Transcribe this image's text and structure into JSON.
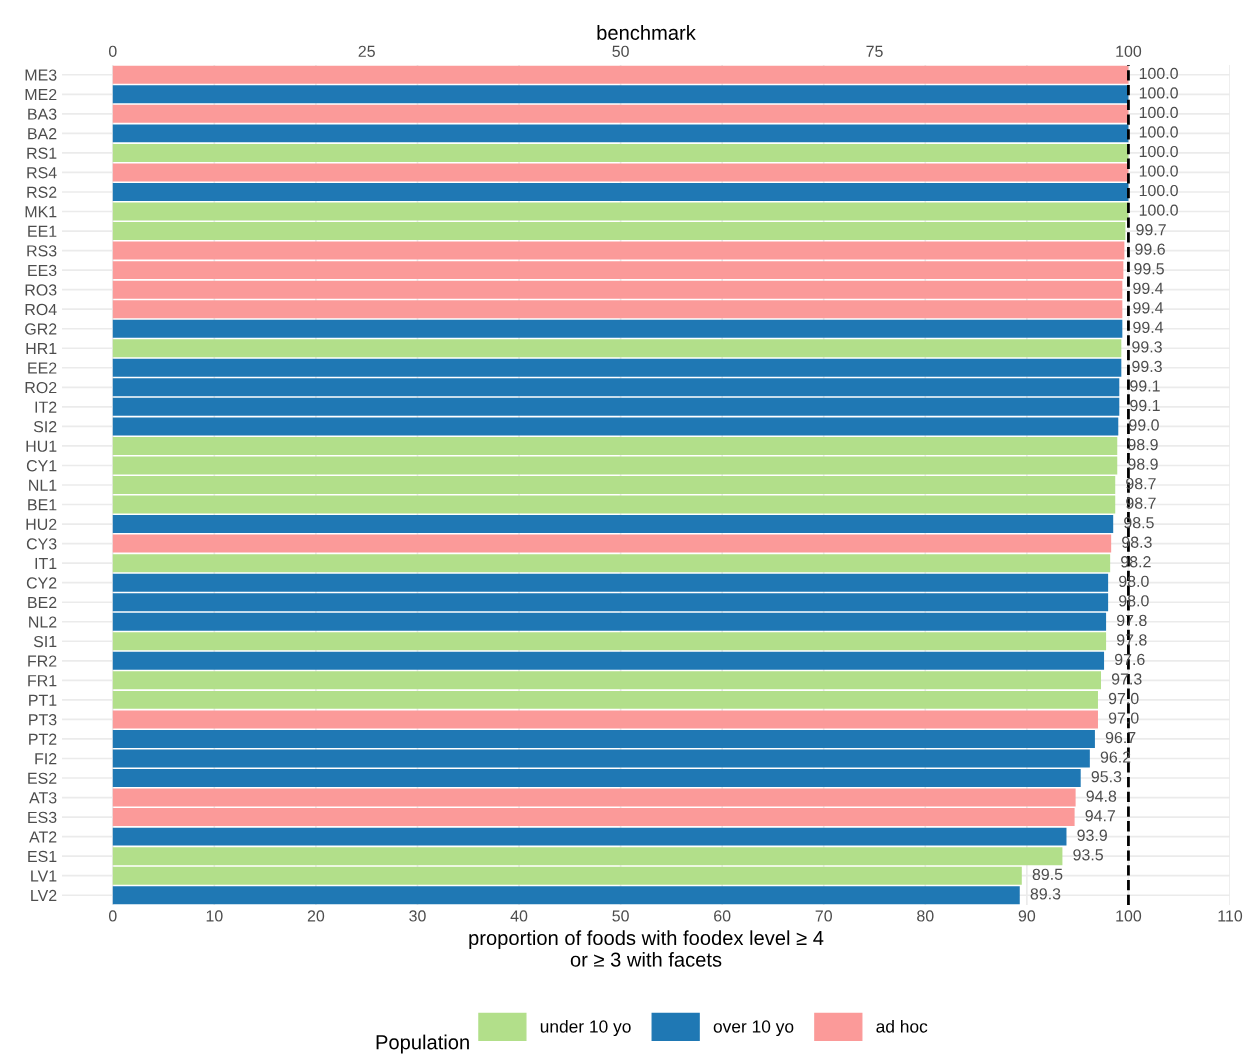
{
  "chart_data": {
    "type": "bar",
    "orientation": "horizontal",
    "x2label": "benchmark",
    "xlabel": "proportion of foods with foodex level ≥ 4\nor ≥ 3 with facets",
    "legend_title": "Population",
    "categories": [
      "ME3",
      "ME2",
      "BA3",
      "BA2",
      "RS1",
      "RS4",
      "RS2",
      "MK1",
      "EE1",
      "RS3",
      "EE3",
      "RO3",
      "RO4",
      "GR2",
      "HR1",
      "EE2",
      "RO2",
      "IT2",
      "SI2",
      "HU1",
      "CY1",
      "NL1",
      "BE1",
      "HU2",
      "CY3",
      "IT1",
      "CY2",
      "BE2",
      "NL2",
      "SI1",
      "FR2",
      "FR1",
      "PT1",
      "PT3",
      "PT2",
      "FI2",
      "ES2",
      "AT3",
      "ES3",
      "AT2",
      "ES1",
      "LV1",
      "LV2"
    ],
    "series": [
      {
        "name": "under 10 yo",
        "color": "#b2df8a",
        "values": [
          null,
          null,
          null,
          null,
          100.0,
          null,
          null,
          100.0,
          99.7,
          null,
          null,
          null,
          null,
          null,
          99.3,
          null,
          null,
          null,
          null,
          98.9,
          98.9,
          98.7,
          98.7,
          null,
          null,
          98.2,
          null,
          null,
          null,
          97.8,
          null,
          97.3,
          97.0,
          null,
          null,
          null,
          null,
          null,
          null,
          null,
          93.5,
          89.5,
          null
        ],
        "value_labels": [
          null,
          null,
          null,
          null,
          "100.0",
          null,
          null,
          "100.0",
          "99.7",
          null,
          null,
          null,
          null,
          null,
          "99.3",
          null,
          null,
          null,
          null,
          "98.9",
          "98.9",
          "98.7",
          "98.7",
          null,
          null,
          "98.2",
          null,
          null,
          null,
          "97.8",
          null,
          "97.3",
          "97.0",
          null,
          null,
          null,
          null,
          null,
          null,
          null,
          "93.5",
          "89.5",
          null
        ]
      },
      {
        "name": "over 10 yo",
        "color": "#1f78b4",
        "values": [
          null,
          100.0,
          null,
          100.0,
          null,
          null,
          100.0,
          null,
          null,
          null,
          null,
          null,
          null,
          99.4,
          null,
          99.3,
          99.1,
          99.1,
          99.0,
          null,
          null,
          null,
          null,
          98.5,
          null,
          null,
          98.0,
          98.0,
          97.8,
          null,
          97.6,
          null,
          null,
          null,
          96.7,
          96.2,
          95.3,
          null,
          null,
          93.9,
          null,
          null,
          89.3
        ],
        "value_labels": [
          null,
          "100.0",
          null,
          "100.0",
          null,
          null,
          "100.0",
          null,
          null,
          null,
          null,
          null,
          null,
          "99.4",
          null,
          "99.3",
          "99.1",
          "99.1",
          "99.0",
          null,
          null,
          null,
          null,
          "98.5",
          null,
          null,
          "98.0",
          "98.0",
          "97.8",
          null,
          "97.6",
          null,
          null,
          null,
          "96.7",
          "96.2",
          "95.3",
          null,
          null,
          "93.9",
          null,
          null,
          "89.3"
        ]
      },
      {
        "name": "ad hoc",
        "color": "#fb9a99",
        "values": [
          100.0,
          null,
          100.0,
          null,
          null,
          100.0,
          null,
          null,
          null,
          99.6,
          99.5,
          99.4,
          99.4,
          null,
          null,
          null,
          null,
          null,
          null,
          null,
          null,
          null,
          null,
          null,
          98.3,
          null,
          null,
          null,
          null,
          null,
          null,
          null,
          null,
          97.0,
          null,
          null,
          null,
          94.8,
          94.7,
          null,
          null,
          null,
          null
        ],
        "value_labels": [
          "100.0",
          null,
          "100.0",
          null,
          null,
          "100.0",
          null,
          null,
          null,
          "99.6",
          "99.5",
          "99.4",
          "99.4",
          null,
          null,
          null,
          null,
          null,
          null,
          null,
          null,
          null,
          null,
          null,
          "98.3",
          null,
          null,
          null,
          null,
          null,
          null,
          null,
          null,
          "97.0",
          null,
          null,
          null,
          "94.8",
          "94.7",
          null,
          null,
          null,
          null
        ]
      }
    ],
    "xlim": [
      -5,
      110
    ],
    "xticks": [
      0,
      10,
      20,
      30,
      40,
      50,
      60,
      70,
      80,
      90,
      100,
      110
    ],
    "x2lim": [
      -5,
      110
    ],
    "x2ticks": [
      0,
      25,
      50,
      75,
      100
    ],
    "ref_lines": [
      {
        "axis": "x",
        "value": 100,
        "color": "#000000",
        "line_style": "dashed"
      }
    ],
    "grid": true,
    "legend": "bottom"
  }
}
